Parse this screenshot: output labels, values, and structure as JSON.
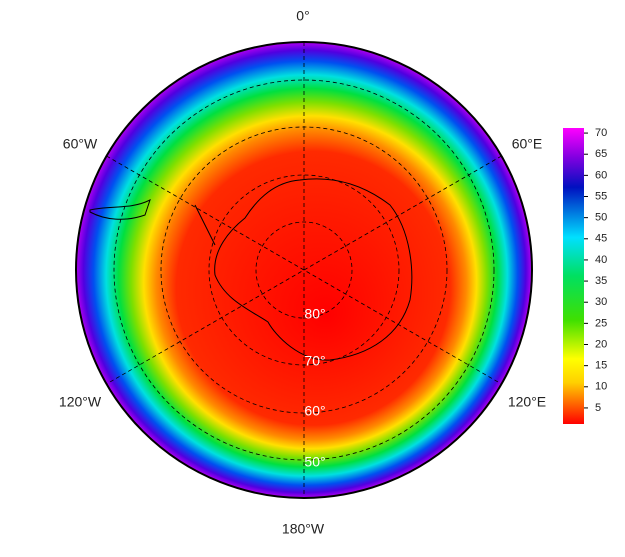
{
  "map": {
    "longitude_labels": [
      "0°",
      "60°E",
      "120°E",
      "180°W",
      "120°W",
      "60°W"
    ],
    "latitude_labels": [
      "80°",
      "70°",
      "60°",
      "50°"
    ],
    "colorbar": {
      "lim": [
        1.2,
        71.2
      ],
      "ticks": [
        5,
        10,
        15,
        20,
        25,
        30,
        35,
        40,
        45,
        50,
        55,
        60,
        65,
        70
      ]
    }
  }
}
